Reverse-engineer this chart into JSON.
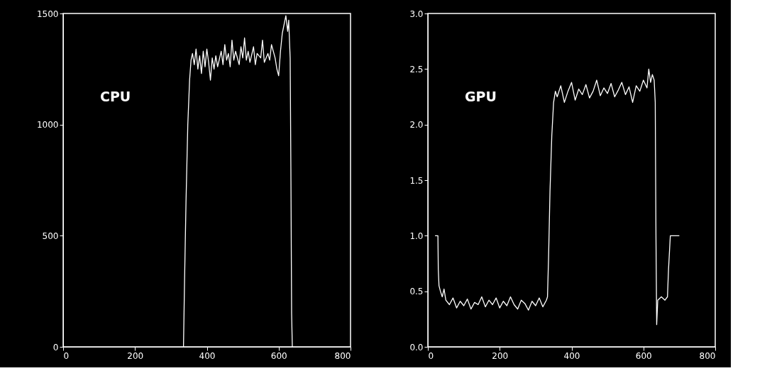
{
  "chart_data": [
    {
      "type": "line",
      "annotations": [
        "CPU"
      ],
      "xlim": [
        0,
        800
      ],
      "xticks": [
        0,
        200,
        400,
        600,
        800
      ],
      "ylim": [
        0,
        1500
      ],
      "yticks": [
        0,
        500,
        1000,
        1500
      ],
      "grid": false,
      "marker": "none",
      "line_style": "solid",
      "series": [
        {
          "color": "#ffffff",
          "x": [
            335,
            338,
            342,
            347,
            352,
            356,
            360,
            365,
            370,
            375,
            380,
            385,
            390,
            395,
            400,
            405,
            410,
            415,
            420,
            425,
            430,
            440,
            445,
            450,
            455,
            460,
            465,
            470,
            475,
            480,
            490,
            495,
            500,
            505,
            510,
            515,
            520,
            530,
            535,
            540,
            550,
            555,
            560,
            570,
            575,
            580,
            590,
            595,
            600,
            605,
            610,
            615,
            620,
            625,
            628,
            630,
            632,
            634,
            636,
            638
          ],
          "values": [
            0,
            300,
            650,
            1000,
            1200,
            1290,
            1320,
            1270,
            1340,
            1250,
            1310,
            1230,
            1330,
            1260,
            1340,
            1280,
            1200,
            1300,
            1250,
            1310,
            1260,
            1330,
            1270,
            1360,
            1290,
            1320,
            1260,
            1380,
            1290,
            1330,
            1270,
            1350,
            1300,
            1390,
            1290,
            1330,
            1280,
            1350,
            1270,
            1320,
            1300,
            1380,
            1280,
            1320,
            1290,
            1360,
            1300,
            1250,
            1220,
            1330,
            1410,
            1450,
            1490,
            1420,
            1470,
            1380,
            1300,
            800,
            150,
            0
          ]
        }
      ]
    },
    {
      "type": "line",
      "annotations": [
        "GPU"
      ],
      "xlim": [
        0,
        800
      ],
      "xticks": [
        0,
        200,
        400,
        600,
        800
      ],
      "ylim": [
        0,
        3
      ],
      "yticks": [
        {
          "value": 0,
          "label": "0.0"
        },
        {
          "value": 0.5,
          "label": "0.5"
        },
        {
          "value": 1,
          "label": "1.0"
        },
        {
          "value": 1.5,
          "label": "1.5"
        },
        {
          "value": 2,
          "label": "2.0"
        },
        {
          "value": 2.5,
          "label": "2.5"
        },
        {
          "value": 3,
          "label": "3.0"
        }
      ],
      "grid": false,
      "marker": "none",
      "line_style": "solid",
      "series": [
        {
          "color": "#ffffff",
          "x": [
            20,
            28,
            29,
            31,
            35,
            40,
            45,
            50,
            60,
            70,
            80,
            90,
            100,
            110,
            120,
            130,
            140,
            150,
            160,
            170,
            180,
            190,
            200,
            210,
            220,
            230,
            240,
            250,
            260,
            270,
            280,
            290,
            300,
            310,
            320,
            330,
            333,
            336,
            340,
            345,
            350,
            355,
            360,
            370,
            380,
            390,
            400,
            410,
            420,
            430,
            440,
            450,
            460,
            470,
            480,
            490,
            500,
            510,
            520,
            530,
            540,
            550,
            560,
            570,
            580,
            590,
            600,
            610,
            615,
            620,
            625,
            630,
            633,
            635,
            637,
            640,
            650,
            660,
            667,
            670,
            675,
            700
          ],
          "values": [
            1.0,
            1.0,
            0.7,
            0.55,
            0.5,
            0.45,
            0.52,
            0.42,
            0.38,
            0.44,
            0.35,
            0.41,
            0.37,
            0.43,
            0.34,
            0.4,
            0.38,
            0.45,
            0.36,
            0.42,
            0.38,
            0.44,
            0.35,
            0.41,
            0.37,
            0.45,
            0.38,
            0.34,
            0.42,
            0.39,
            0.33,
            0.41,
            0.37,
            0.44,
            0.36,
            0.42,
            0.45,
            0.8,
            1.4,
            1.9,
            2.2,
            2.3,
            2.25,
            2.35,
            2.2,
            2.3,
            2.38,
            2.22,
            2.32,
            2.27,
            2.36,
            2.24,
            2.3,
            2.4,
            2.26,
            2.33,
            2.28,
            2.37,
            2.25,
            2.31,
            2.38,
            2.27,
            2.34,
            2.2,
            2.35,
            2.3,
            2.4,
            2.33,
            2.5,
            2.38,
            2.45,
            2.4,
            2.2,
            1.0,
            0.2,
            0.42,
            0.45,
            0.42,
            0.45,
            0.7,
            1.0,
            1.0
          ]
        }
      ]
    }
  ]
}
